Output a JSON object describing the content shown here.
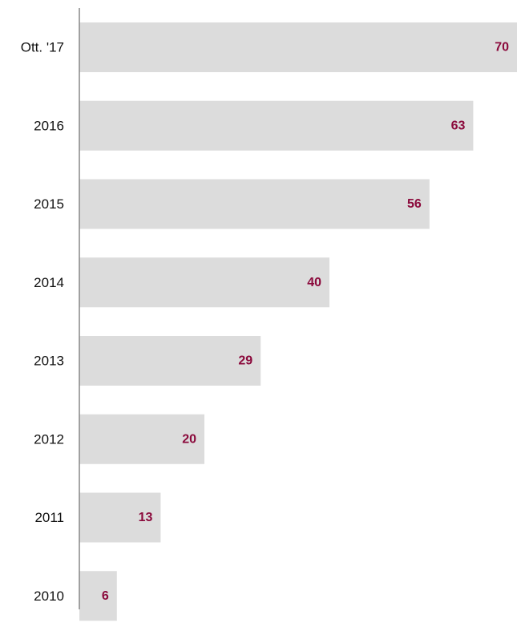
{
  "chart_data": {
    "type": "bar",
    "orientation": "horizontal",
    "categories": [
      "Ott. '17",
      "2016",
      "2015",
      "2014",
      "2013",
      "2012",
      "2011",
      "2010"
    ],
    "values": [
      70,
      63,
      56,
      40,
      29,
      20,
      13,
      6
    ],
    "value_labels": [
      "70",
      "63",
      "56",
      "40",
      "29",
      "20",
      "13",
      "6"
    ],
    "title": "",
    "xlabel": "",
    "ylabel": "",
    "xlim": [
      0,
      70
    ],
    "grid": false,
    "legend": "none",
    "data_labels": "inside-end"
  },
  "colors": {
    "bar": "#dcdcdc",
    "value_label": "#8b0a3c",
    "axis": "#888888",
    "category_label": "#111111"
  }
}
